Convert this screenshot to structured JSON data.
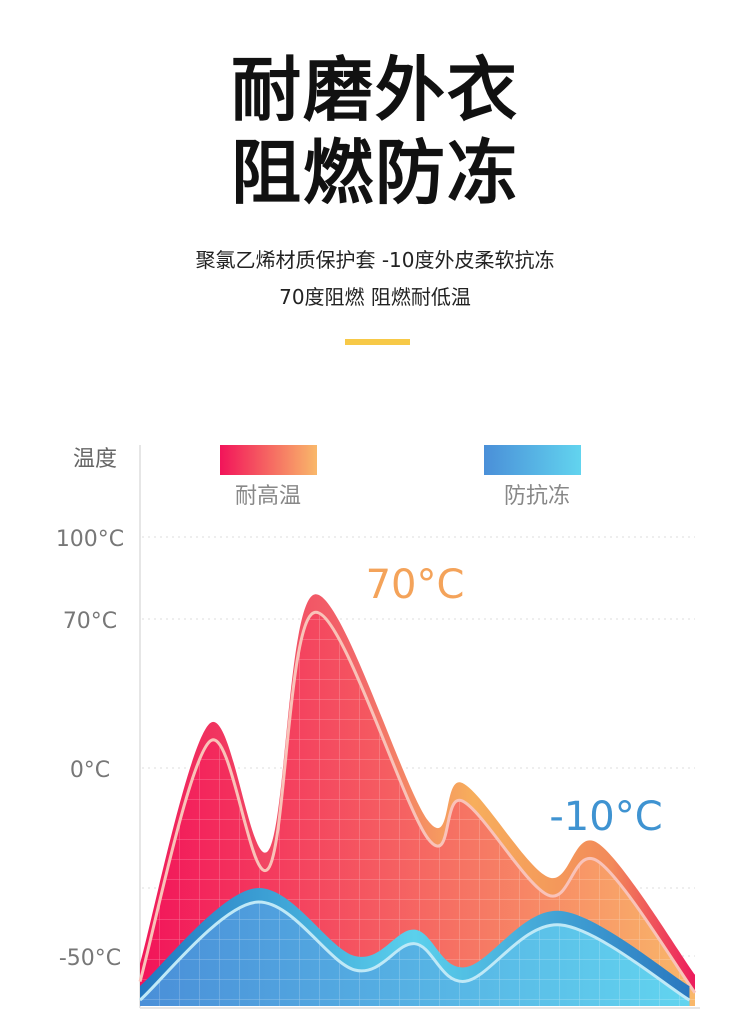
{
  "header": {
    "title_line1": "耐磨外衣",
    "title_line2": "阻燃防冻",
    "subtitle_line1": "聚氯乙烯材质保护套 -10度外皮柔软抗冻",
    "subtitle_line2": "70度阻燃 阻燃耐低温",
    "accent_color": "#f7c948"
  },
  "chart_data": {
    "type": "area",
    "ylabel": "温度",
    "y_ticks": [
      {
        "value": 100,
        "label": "100°C"
      },
      {
        "value": 70,
        "label": "70°C"
      },
      {
        "value": 0,
        "label": "0°C"
      },
      {
        "value": -50,
        "label": "-50°C"
      }
    ],
    "grid": true,
    "legend_placement": "top",
    "series": [
      {
        "name": "耐高温",
        "colors": [
          "#f2145a",
          "#f9b86a"
        ],
        "x": [
          0,
          1.26,
          2.31,
          3.15,
          5.19,
          5.81,
          7.35,
          8.25,
          10
        ],
        "values": [
          -52,
          21,
          -22,
          79,
          -14,
          -4,
          -29,
          -20,
          -55
        ]
      },
      {
        "name": "防抗冻",
        "colors": [
          "#4a8fd8",
          "#62d4ef"
        ],
        "x": [
          0,
          2.07,
          3.87,
          4.95,
          5.86,
          7.57,
          9.9
        ],
        "values": [
          -58,
          -32,
          -50,
          -43,
          -53,
          -38,
          -58
        ]
      }
    ],
    "annotations": [
      {
        "text": "70°C",
        "color": "#f4a35a"
      },
      {
        "text": "-10°C",
        "color": "#3f93d1"
      }
    ]
  }
}
